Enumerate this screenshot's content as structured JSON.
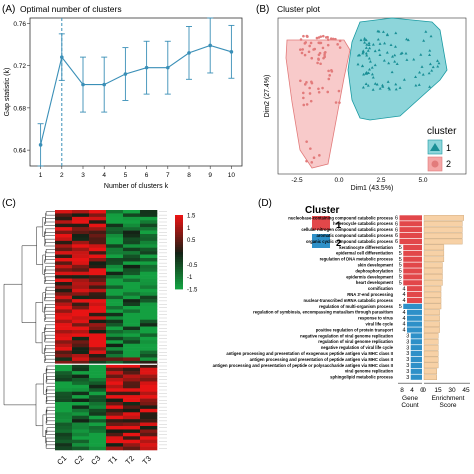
{
  "panels": {
    "a": {
      "letter": "(A)",
      "title": "Optimal number of clusters"
    },
    "b": {
      "letter": "(B)",
      "title": "Cluster plot"
    },
    "c": {
      "letter": "(C)"
    },
    "d": {
      "letter": "(D)"
    }
  },
  "colors": {
    "line": "#3a8fb7",
    "cluster1": "#f4a6a6",
    "cluster2": "#2fb3bb",
    "heat_high": "#e8202a",
    "heat_low": "#20a040",
    "bar_red": "#e2474a",
    "bar_blue": "#2e90c8",
    "enrich_fill": "#f7d1a6"
  },
  "chart_data": [
    {
      "panel": "A",
      "type": "line",
      "title": "Optimal number of clusters",
      "xlabel": "Number of clusters k",
      "ylabel": "Gap statistic (k)",
      "x": [
        1,
        2,
        3,
        4,
        5,
        6,
        7,
        8,
        9,
        10
      ],
      "y": [
        0.645,
        0.728,
        0.702,
        0.702,
        0.712,
        0.718,
        0.718,
        0.732,
        0.739,
        0.733
      ],
      "err": [
        0.02,
        0.022,
        0.026,
        0.026,
        0.025,
        0.025,
        0.025,
        0.025,
        0.026,
        0.025
      ],
      "optimal_k": 2,
      "xticks": [
        "1",
        "2",
        "3",
        "4",
        "5",
        "6",
        "7",
        "8",
        "9",
        "10"
      ],
      "yticks": [
        "0.64",
        "0.68",
        "0.72",
        "0.76"
      ],
      "ylim": [
        0.625,
        0.765
      ]
    },
    {
      "panel": "B",
      "type": "scatter",
      "title": "Cluster plot",
      "xlabel": "Dim1 (43.5%)",
      "ylabel": "Dim2 (27.4%)",
      "xticks": [
        "-2.5",
        "0.0",
        "2.5",
        "5.0"
      ],
      "legend_title": "cluster",
      "legend": [
        "1",
        "2"
      ]
    },
    {
      "panel": "C",
      "type": "heatmap",
      "columns": [
        "C1",
        "C2",
        "C3",
        "T1",
        "T2",
        "T3"
      ],
      "legend_title": "Cluster",
      "legend_clusters": [
        "1",
        "2"
      ],
      "scale_ticks": [
        "1.5",
        "1",
        "0.5",
        "0",
        "-0.5",
        "-1",
        "-1.5"
      ]
    },
    {
      "panel": "D",
      "type": "bar",
      "terms": [
        "nucleobase-containing compound catabolic process",
        "heterocycle catabolic process",
        "cellular nitrogen compound catabolic process",
        "aromatic compound catabolic process",
        "organic cyclic compound catabolic process",
        "keratinocyte differentiation",
        "epidermal cell differentiation",
        "regulation of DNA metabolic process",
        "skin development",
        "dephosphorylation",
        "epidermis development",
        "heart development",
        "cornification",
        "RNA 3'-end processing",
        "nuclear-transcribed mRNA catabolic process",
        "regulation of multi-organism process",
        "regulation of symbiosis, encompassing mutualism through parasitism",
        "response to virus",
        "viral life cycle",
        "positive regulation of protein transport",
        "negative regulation of viral genome replication",
        "regulation of viral genome replication",
        "negative regulation of viral life cycle",
        "antigen processing and presentation of exogenous peptide antigen via MHC class II",
        "antigen processing and presentation of peptide antigen via MHC class II",
        "antigen processing and presentation of peptide or polysaccharide antigen via MHC class II",
        "viral genome replication",
        "sphingolipid metabolic process"
      ],
      "gene_count": [
        6,
        6,
        6,
        6,
        6,
        5,
        5,
        5,
        5,
        5,
        5,
        5,
        4,
        4,
        4,
        5,
        4,
        4,
        4,
        4,
        3,
        3,
        3,
        3,
        3,
        3,
        3,
        3
      ],
      "cluster": [
        1,
        1,
        1,
        1,
        1,
        1,
        1,
        1,
        1,
        1,
        1,
        1,
        1,
        1,
        1,
        2,
        2,
        2,
        2,
        2,
        2,
        2,
        2,
        2,
        2,
        2,
        2,
        2
      ],
      "enrichment_score": [
        28,
        27,
        27,
        27,
        27,
        14,
        14,
        14,
        13,
        13,
        13,
        13,
        12,
        12,
        12,
        12,
        11,
        11,
        11,
        11,
        10,
        10,
        10,
        10,
        10,
        10,
        9,
        9
      ],
      "gene_count_label": "Gene\nCount",
      "gene_count_ticks": [
        "8",
        "4",
        "0"
      ],
      "enrichment_label": "Enrichment\nScore",
      "enrichment_ticks": [
        "0",
        "15",
        "30",
        "45"
      ]
    }
  ]
}
